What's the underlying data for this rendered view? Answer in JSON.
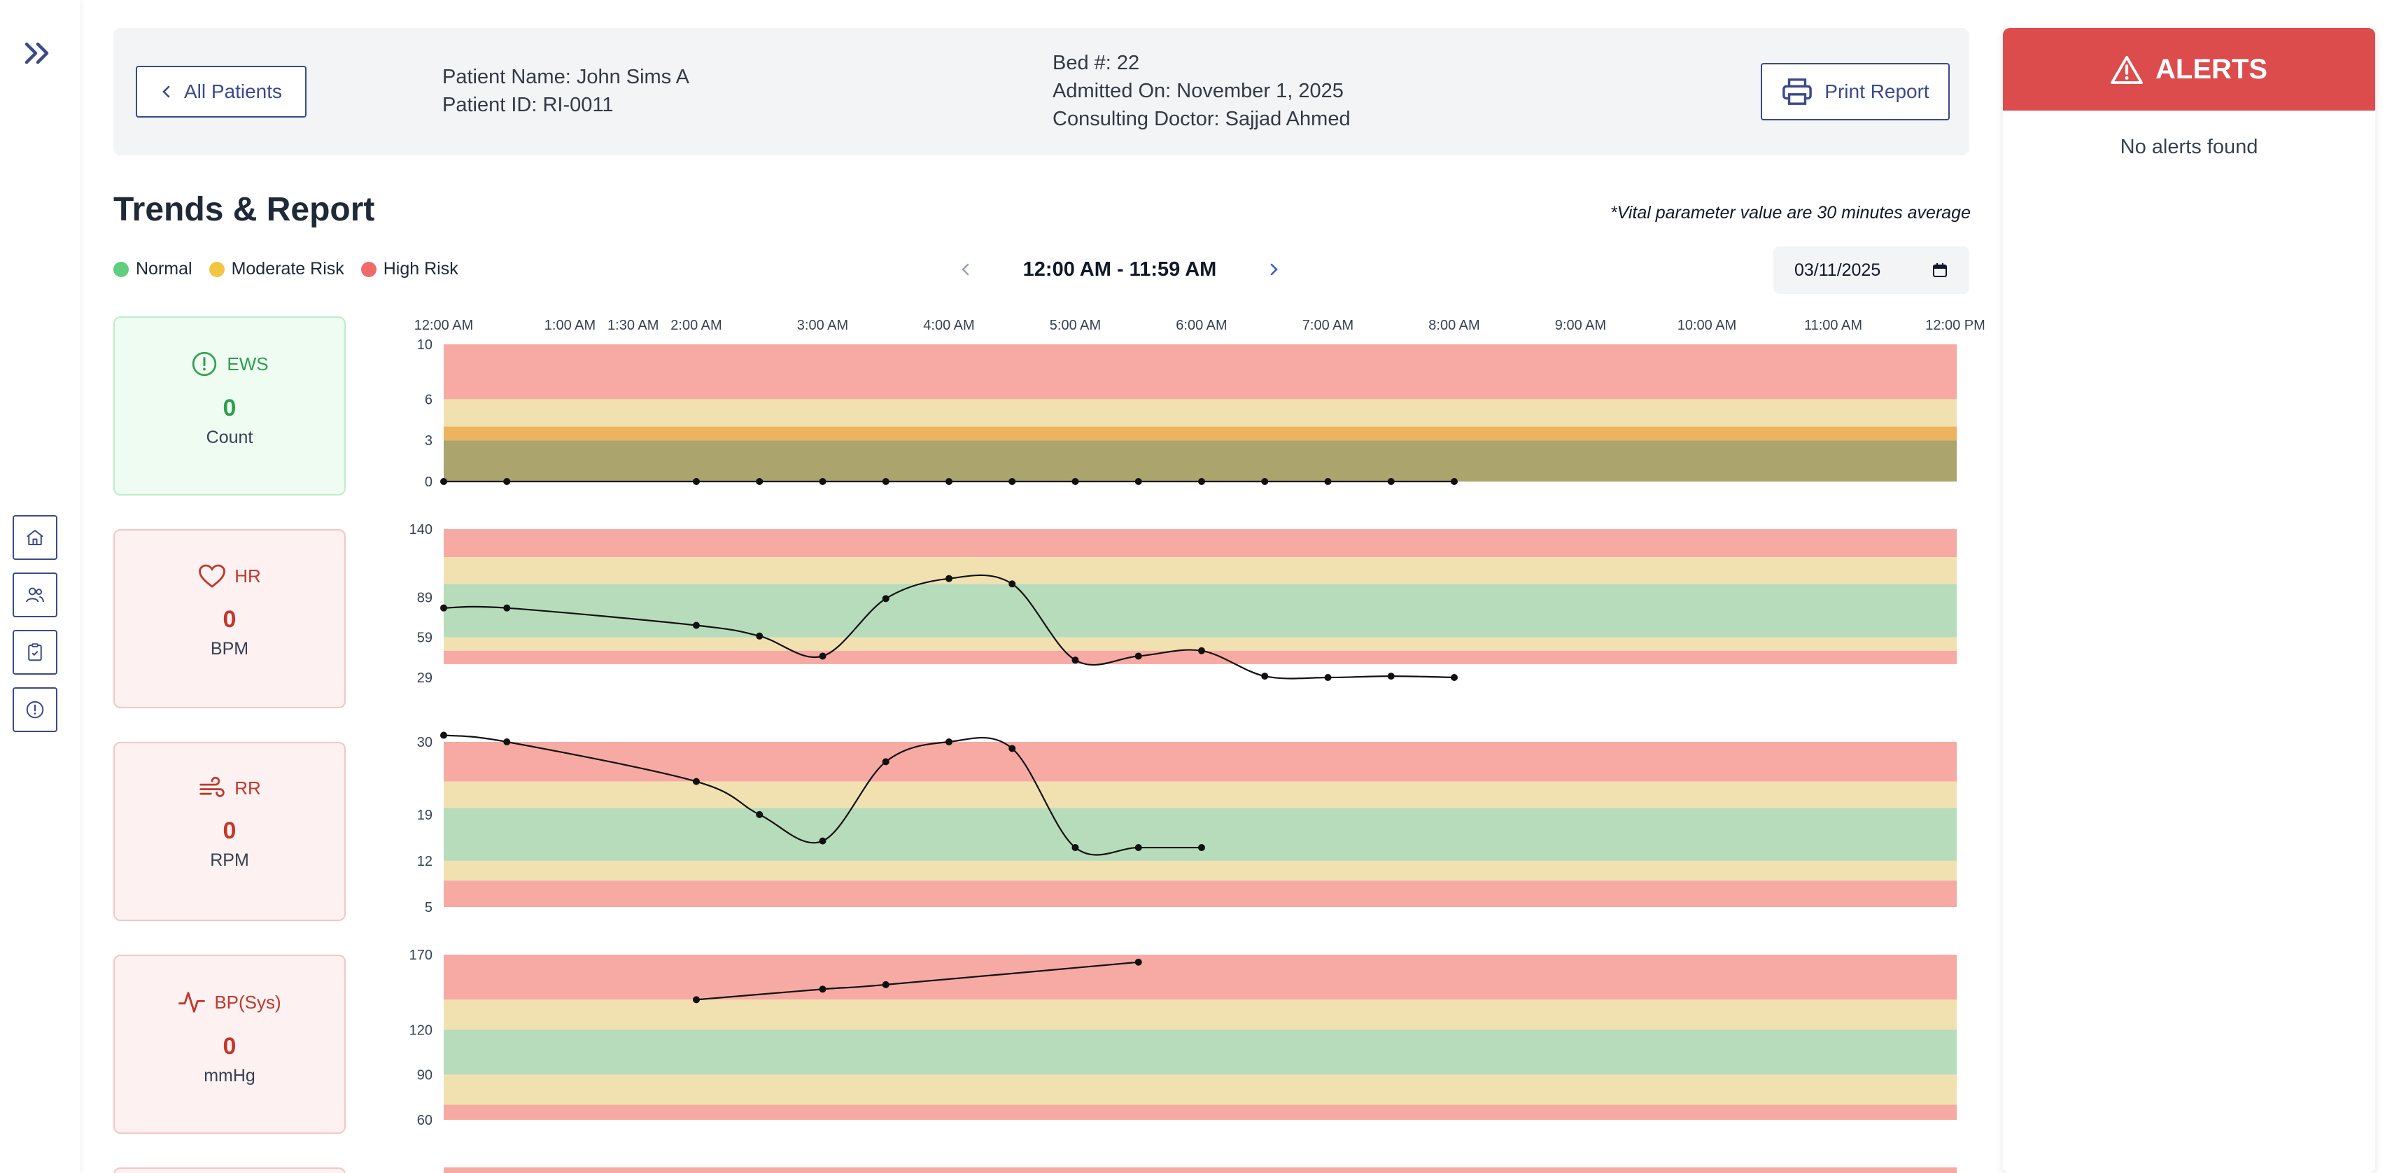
{
  "header": {
    "back_label": "All Patients",
    "patient_name": "Patient Name: John Sims A",
    "patient_id": "Patient ID: RI-0011",
    "bed": "Bed #: 22",
    "admitted": "Admitted On: November 1, 2025",
    "doctor": "Consulting Doctor: Sajjad Ahmed",
    "print_label": "Print Report"
  },
  "trends": {
    "title": "Trends & Report",
    "note": "*Vital parameter value are 30 minutes average",
    "legend": [
      {
        "label": "Normal",
        "color": "#5fcf7f"
      },
      {
        "label": "Moderate Risk",
        "color": "#f4c542"
      },
      {
        "label": "High Risk",
        "color": "#ef6b6b"
      }
    ],
    "time_range": "12:00 AM - 11:59 AM",
    "date_value": "03/11/2025"
  },
  "colors": {
    "high": "#f6aaa3",
    "moderate": "#f2e1b0",
    "normal": "#b7dcbb",
    "accent": "#3b4a8a",
    "alert": "#dc4c4c"
  },
  "vitals": [
    {
      "key": "ews",
      "label": "EWS",
      "value": "0",
      "unit": "Count",
      "tone": "green",
      "icon": "alert-circle-icon"
    },
    {
      "key": "hr",
      "label": "HR",
      "value": "0",
      "unit": "BPM",
      "tone": "red",
      "icon": "heart-icon"
    },
    {
      "key": "rr",
      "label": "RR",
      "value": "0",
      "unit": "RPM",
      "tone": "red",
      "icon": "wind-icon"
    },
    {
      "key": "bp",
      "label": "BP(Sys)",
      "value": "0",
      "unit": "mmHg",
      "tone": "red",
      "icon": "activity-icon"
    }
  ],
  "time_ticks": [
    "12:00 AM",
    "1:00 AM",
    "1:30 AM",
    "2:00 AM",
    "3:00 AM",
    "4:00 AM",
    "5:00 AM",
    "6:00 AM",
    "7:00 AM",
    "8:00 AM",
    "9:00 AM",
    "10:00 AM",
    "11:00 AM",
    "12:00 PM"
  ],
  "chart_data": [
    {
      "type": "line",
      "name": "EWS",
      "yticks": [
        10,
        6,
        3,
        0
      ],
      "ylim": [
        0,
        10
      ],
      "bands": [
        {
          "from": 6,
          "to": 10,
          "risk": "high"
        },
        {
          "from": 4,
          "to": 6,
          "risk": "moderate"
        },
        {
          "from": 3,
          "to": 4,
          "risk": "orange"
        },
        {
          "from": 0,
          "to": 3,
          "risk": "olive"
        }
      ],
      "x_hours": [
        0,
        0.5,
        2,
        2.5,
        3,
        3.5,
        4,
        4.5,
        5,
        5.5,
        6,
        6.5,
        7,
        7.5,
        8
      ],
      "values": [
        0,
        0,
        0,
        0,
        0,
        0,
        0,
        0,
        0,
        0,
        0,
        0,
        0,
        0,
        0
      ]
    },
    {
      "type": "line",
      "name": "HR",
      "yticks": [
        140,
        89,
        59,
        29
      ],
      "ylim": [
        29,
        140
      ],
      "bands": [
        {
          "from": 119,
          "to": 140,
          "risk": "high"
        },
        {
          "from": 99,
          "to": 119,
          "risk": "moderate"
        },
        {
          "from": 59,
          "to": 99,
          "risk": "normal"
        },
        {
          "from": 49,
          "to": 59,
          "risk": "moderate"
        },
        {
          "from": 39,
          "to": 49,
          "risk": "high"
        }
      ],
      "x_hours": [
        0,
        0.5,
        2,
        2.5,
        3,
        3.5,
        4,
        4.5,
        5,
        5.5,
        6,
        6.5,
        7,
        7.5,
        8
      ],
      "values": [
        81,
        81,
        68,
        60,
        45,
        88,
        103,
        99,
        42,
        45,
        49,
        30,
        29,
        30,
        29
      ]
    },
    {
      "type": "line",
      "name": "RR",
      "yticks": [
        30,
        19,
        12,
        5
      ],
      "ylim": [
        5,
        30
      ],
      "bands": [
        {
          "from": 24,
          "to": 30,
          "risk": "high"
        },
        {
          "from": 20,
          "to": 24,
          "risk": "moderate"
        },
        {
          "from": 12,
          "to": 20,
          "risk": "normal"
        },
        {
          "from": 9,
          "to": 12,
          "risk": "moderate"
        },
        {
          "from": 5,
          "to": 9,
          "risk": "high"
        }
      ],
      "x_hours": [
        0,
        0.5,
        2,
        2.5,
        3,
        3.5,
        4,
        4.5,
        5,
        5.5,
        6
      ],
      "values": [
        31,
        30,
        24,
        19,
        15,
        27,
        30,
        29,
        14,
        14,
        14
      ]
    },
    {
      "type": "line",
      "name": "BP(Sys)",
      "yticks": [
        170,
        120,
        90,
        60
      ],
      "ylim": [
        60,
        170
      ],
      "bands": [
        {
          "from": 140,
          "to": 170,
          "risk": "high"
        },
        {
          "from": 120,
          "to": 140,
          "risk": "moderate"
        },
        {
          "from": 90,
          "to": 120,
          "risk": "normal"
        },
        {
          "from": 70,
          "to": 90,
          "risk": "moderate"
        },
        {
          "from": 60,
          "to": 70,
          "risk": "high"
        }
      ],
      "x_hours": [
        2,
        3,
        3.5,
        5.5
      ],
      "values": [
        140,
        147,
        150,
        165
      ]
    }
  ],
  "alerts": {
    "title": "ALERTS",
    "empty": "No alerts found"
  }
}
